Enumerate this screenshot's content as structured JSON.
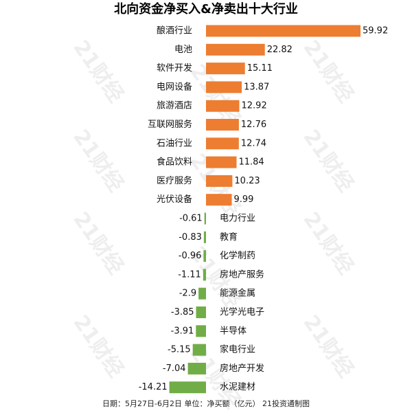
{
  "chart_data": {
    "type": "bar",
    "orientation": "horizontal",
    "title": "北向资金净买入&净卖出十大行业",
    "note": "日期：5月27日-6月2日 单位：净买额（亿元） 21投资通制图",
    "categories": [
      "酿酒行业",
      "电池",
      "软件开发",
      "电网设备",
      "旅游酒店",
      "互联网服务",
      "石油行业",
      "食品饮料",
      "医疗服务",
      "光伏设备",
      "电力行业",
      "教育",
      "化学制药",
      "房地产服务",
      "能源金属",
      "光学光电子",
      "半导体",
      "家电行业",
      "房地产开发",
      "水泥建材"
    ],
    "values": [
      59.92,
      22.82,
      15.11,
      13.87,
      12.92,
      12.76,
      12.74,
      11.84,
      10.23,
      9.99,
      -0.61,
      -0.83,
      -0.96,
      -1.11,
      -2.9,
      -3.85,
      -3.91,
      -5.15,
      -7.04,
      -14.21
    ],
    "value_labels": [
      "59.92",
      "22.82",
      "15.11",
      "13.87",
      "12.92",
      "12.76",
      "12.74",
      "11.84",
      "10.23",
      "9.99",
      "-0.61",
      "-0.83",
      "-0.96",
      "-1.11",
      "-2.9",
      "-3.85",
      "-3.91",
      "-5.15",
      "-7.04",
      "-14.21"
    ],
    "colors": {
      "positive": "#ED7D31",
      "negative": "#70AD47"
    }
  },
  "watermark": "21财经"
}
